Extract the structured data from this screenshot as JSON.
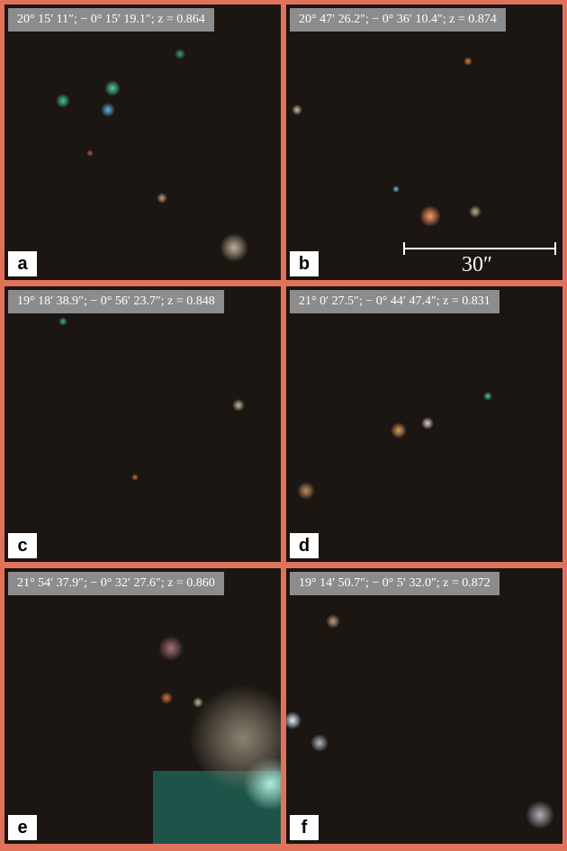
{
  "panels": [
    {
      "label": "20° 15′ 11″; − 0° 15′ 19.1″; z = 0.864",
      "letter": "a"
    },
    {
      "label": "20° 47′ 26.2″; − 0° 36′ 10.4″; z = 0.874",
      "letter": "b"
    },
    {
      "label": "19° 18′ 38.9″; − 0° 56′ 23.7″; z = 0.848",
      "letter": "c"
    },
    {
      "label": "21° 0′ 27.5″; − 0° 44′ 47.4″; z = 0.831",
      "letter": "d"
    },
    {
      "label": "21° 54′ 37.9″; − 0° 32′ 27.6″; z = 0.860",
      "letter": "e"
    },
    {
      "label": "19° 14′ 50.7″; − 0° 5′ 32.0″; z = 0.872",
      "letter": "f"
    }
  ],
  "scale_bar": {
    "label": "30″"
  }
}
